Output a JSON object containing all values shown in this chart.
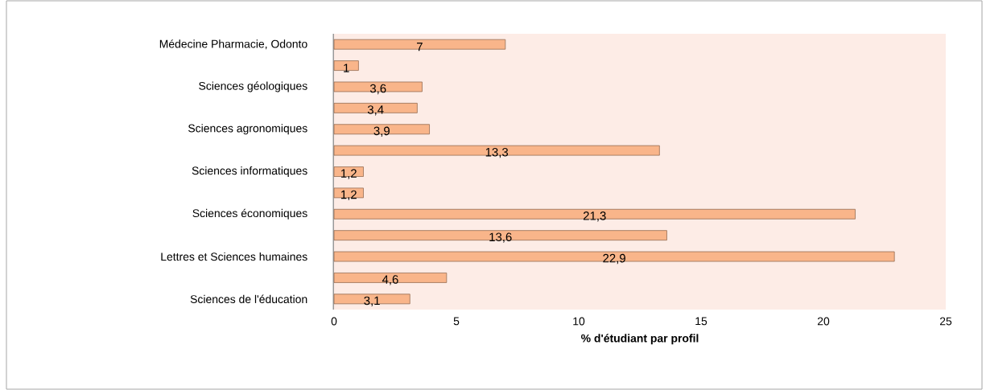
{
  "chart_data": {
    "type": "bar",
    "orientation": "horizontal",
    "xlabel": "% d'étudiant par profil",
    "categories": [
      "Médecine Pharmacie, Odonto",
      null,
      "Sciences géologiques",
      null,
      "Sciences agronomiques",
      null,
      "Sciences informatiques",
      null,
      "Sciences économiques",
      null,
      "Lettres et Sciences humaines",
      null,
      "Sciences de l'éducation"
    ],
    "values": [
      7,
      1,
      3.6,
      3.4,
      3.9,
      13.3,
      1.2,
      1.2,
      21.3,
      13.6,
      22.9,
      4.6,
      3.1
    ],
    "value_labels": [
      "7",
      "1",
      "3,6",
      "3,4",
      "3,9",
      "13,3",
      "1,2",
      "1,2",
      "21,3",
      "13,6",
      "22,9",
      "4,6",
      "3,1"
    ],
    "color": "#f9b58a",
    "xlim": [
      0,
      25
    ],
    "xticks": [
      0,
      5,
      10,
      15,
      20,
      25
    ],
    "grid": false
  }
}
